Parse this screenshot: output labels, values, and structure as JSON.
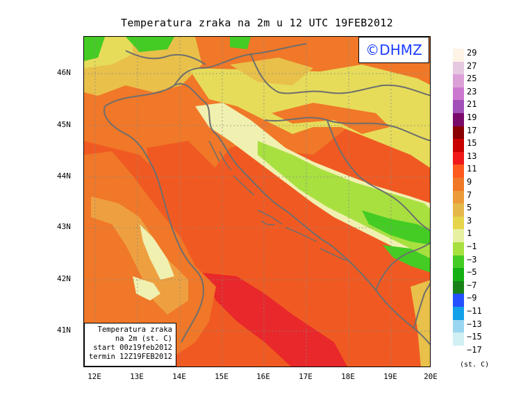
{
  "title": "Temperatura zraka na 2m u 12 UTC 19FEB2012",
  "logo": "©DHMZ",
  "info": {
    "line1": "Temperatura zraka",
    "line2": "na 2m (st. C)",
    "line3": "start 00z19feb2012",
    "line4": "termin 12Z19FEB2012"
  },
  "axes": {
    "x_ticks": [
      "12E",
      "13E",
      "14E",
      "15E",
      "16E",
      "17E",
      "18E",
      "19E",
      "20E"
    ],
    "y_ticks": [
      "46N",
      "45N",
      "44N",
      "43N",
      "42N",
      "41N"
    ]
  },
  "legend": {
    "unit": "(st. C)",
    "labels": [
      "29",
      "27",
      "25",
      "23",
      "21",
      "19",
      "17",
      "15",
      "13",
      "11",
      "9",
      "7",
      "5",
      "3",
      "1",
      "−1",
      "−3",
      "−5",
      "−7",
      "−9",
      "−11",
      "−13",
      "−15",
      "−17"
    ],
    "colors": [
      "#fff3e6",
      "#e6c8e0",
      "#dca0d8",
      "#cc78d0",
      "#a050b8",
      "#7a0a6a",
      "#8a0000",
      "#c80000",
      "#f01818",
      "#ff5a1e",
      "#f07828",
      "#ec9a3a",
      "#e6b84a",
      "#e6d44a",
      "#e6f0a0",
      "#a8e040",
      "#44cc24",
      "#14b014",
      "#188218",
      "#2450ff",
      "#12a0e8",
      "#9ad6f0",
      "#d0f0f4",
      "#ffffff"
    ]
  },
  "palette": {
    "red": "#e8282a",
    "orange_red": "#f05a22",
    "orange": "#f07828",
    "light_orange": "#eea040",
    "yellow_orange": "#e8c04a",
    "yellow": "#e6dc5a",
    "pale_yellow": "#f0f0b0",
    "light_green": "#a8e040",
    "green": "#44cc24",
    "coast": "#6e6e6e"
  }
}
